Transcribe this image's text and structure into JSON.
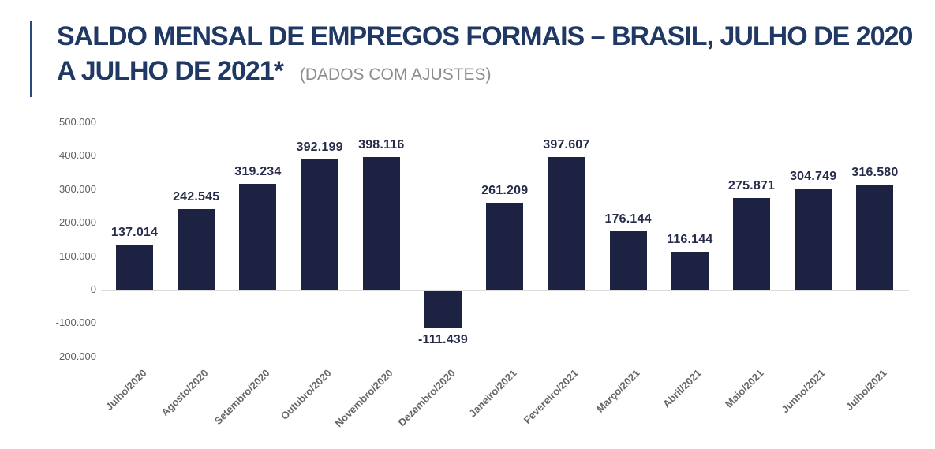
{
  "header": {
    "title": "SALDO MENSAL DE EMPREGOS FORMAIS – BRASIL, JULHO DE 2020 A JULHO DE 2021*",
    "subtitle": "(DADOS COM AJUSTES)"
  },
  "colors": {
    "title_navy": "#1f3864",
    "subtitle_gray": "#8c8c8c",
    "accent_bar": "#2a4a7c",
    "bar_fill": "#1e2242",
    "value_label": "#272b4a",
    "axis_text": "#5f5f5f",
    "x_label_text": "#666666",
    "axis_line": "#dcdcdc"
  },
  "chart_data": {
    "type": "bar",
    "title": "SALDO MENSAL DE EMPREGOS FORMAIS – BRASIL, JULHO DE 2020 A JULHO DE 2021* (DADOS COM AJUSTES)",
    "categories": [
      "Julho/2020",
      "Agosto/2020",
      "Setembro/2020",
      "Outubro/2020",
      "Novembro/2020",
      "Dezembro/2020",
      "Janeiro/2021",
      "Fevereiro/2021",
      "Março/2021",
      "Abril/2021",
      "Maio/2021",
      "Junho/2021",
      "Julho/2021"
    ],
    "values": [
      137014,
      242545,
      319234,
      392199,
      398116,
      -111439,
      261209,
      397607,
      176144,
      116144,
      275871,
      304749,
      316580
    ],
    "value_labels": [
      "137.014",
      "242.545",
      "319.234",
      "392.199",
      "398.116",
      "-111.439",
      "261.209",
      "397.607",
      "176.144",
      "116.144",
      "275.871",
      "304.749",
      "316.580"
    ],
    "xlabel": "",
    "ylabel": "",
    "ylim": [
      -200000,
      500000
    ],
    "yticks": [
      500000,
      400000,
      300000,
      200000,
      100000,
      0,
      -100000,
      -200000
    ],
    "ytick_labels": [
      "500.000",
      "400.000",
      "300.000",
      "200.000",
      "100.000",
      "0",
      "-100.000",
      "-200.000"
    ],
    "grid": false,
    "legend": "none",
    "bar_color": "#1e2242"
  }
}
